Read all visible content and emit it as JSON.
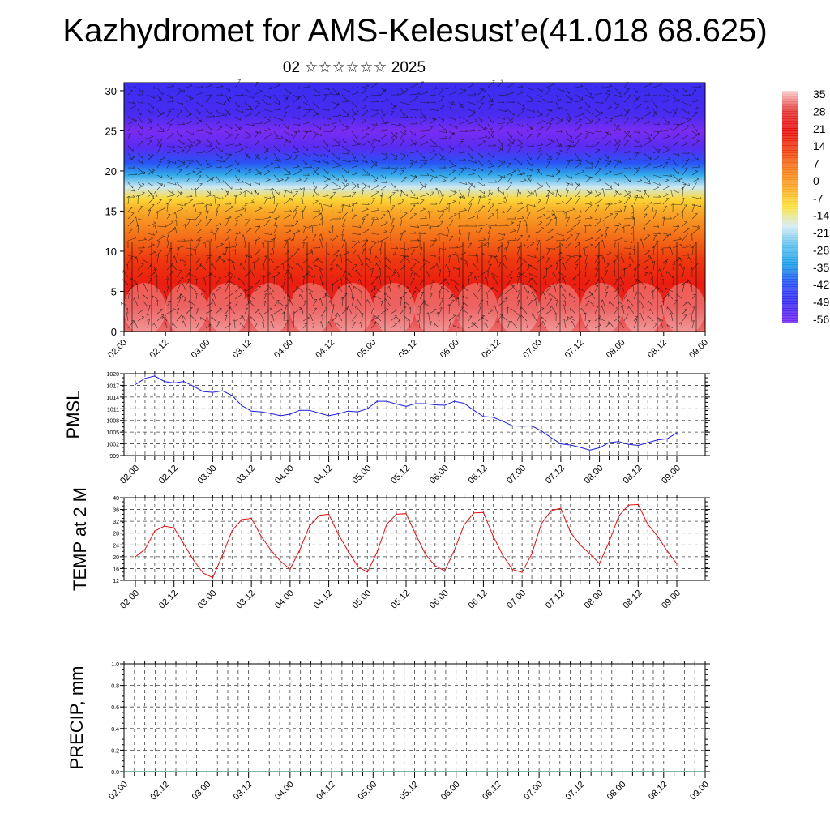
{
  "title": "Kazhydromet for AMS-Kelesust’e(41.018 68.625)",
  "subtitle": "02 ☆☆☆☆☆☆ 2025",
  "colors": {
    "pmsl_line": "#1c1ce0",
    "temp_line": "#e01010",
    "precip_line": "#0a6a4a"
  },
  "chart_data": [
    {
      "type": "heatmap",
      "name": "upper-air cross-section",
      "ylim": [
        0,
        31
      ],
      "yticks": [
        0,
        5,
        10,
        15,
        20,
        25,
        30
      ],
      "x_tick_labels": [
        "02.00",
        "02.12",
        "03.00",
        "03.12",
        "04.00",
        "04.12",
        "05.00",
        "05.12",
        "06.00",
        "06.12",
        "07.00",
        "07.12",
        "08.00",
        "08.12",
        "09.00"
      ],
      "colorbar": {
        "labels": [
          "35",
          "28",
          "21",
          "14",
          "7",
          "0",
          "-7",
          "-14",
          "-21",
          "-28",
          "-35",
          "-42",
          "-49",
          "-56"
        ],
        "stops": [
          "#f9d0d0",
          "#e53a3a",
          "#e81010",
          "#ee3a10",
          "#f5781a",
          "#f8a828",
          "#fce23a",
          "#d8ecf4",
          "#5ec0ec",
          "#1a9ee8",
          "#2b4ef5",
          "#3a2cf0",
          "#7a2cf2"
        ]
      },
      "bands": [
        {
          "level": 0,
          "temp": 30
        },
        {
          "level": 3,
          "temp": 24
        },
        {
          "level": 6,
          "temp": 17
        },
        {
          "level": 9,
          "temp": 12
        },
        {
          "level": 11,
          "temp": 7
        },
        {
          "level": 13,
          "temp": 2
        },
        {
          "level": 15,
          "temp": -4
        },
        {
          "level": 16.5,
          "temp": -10
        },
        {
          "level": 18,
          "temp": -20
        },
        {
          "level": 19.5,
          "temp": -32
        },
        {
          "level": 21,
          "temp": -42
        },
        {
          "level": 23,
          "temp": -54
        },
        {
          "level": 25,
          "temp": -58
        },
        {
          "level": 27,
          "temp": -52
        },
        {
          "level": 31,
          "temp": -50
        }
      ]
    },
    {
      "type": "line",
      "ylabel": "PMSL",
      "ylim": [
        999,
        1020
      ],
      "yticks": [
        "999",
        "1002",
        "1005",
        "1008",
        "1011",
        "1014",
        "1017",
        "1020"
      ],
      "x_tick_labels": [
        "02.00",
        "02.12",
        "03.00",
        "03.12",
        "04.00",
        "04.12",
        "05.00",
        "05.12",
        "06.00",
        "06.12",
        "07.00",
        "07.12",
        "08.00",
        "08.12",
        "09.00"
      ],
      "series": [
        {
          "values": [
            1017.2,
            1018.8,
            1019.4,
            1018.0,
            1017.6,
            1018.0,
            1016.8,
            1015.4,
            1015.2,
            1015.6,
            1014.4,
            1011.8,
            1010.4,
            1010.2,
            1009.8,
            1009.2,
            1009.6,
            1010.6,
            1010.6,
            1009.9,
            1009.2,
            1009.7,
            1010.4,
            1010.2,
            1011.0,
            1012.9,
            1012.9,
            1012.2,
            1011.6,
            1012.3,
            1012.3,
            1012.0,
            1011.9,
            1012.9,
            1012.4,
            1010.6,
            1009.0,
            1008.8,
            1007.8,
            1006.6,
            1006.5,
            1006.6,
            1005.3,
            1003.6,
            1002.0,
            1001.7,
            1001.1,
            1000.4,
            1001.0,
            1002.3,
            1002.6,
            1001.9,
            1001.6,
            1002.3,
            1003.0,
            1003.3,
            1004.8
          ]
        }
      ]
    },
    {
      "type": "line",
      "ylabel": "TEMP at 2 M",
      "ylim": [
        12,
        40
      ],
      "yticks": [
        "12",
        "16",
        "20",
        "24",
        "28",
        "32",
        "36",
        "40"
      ],
      "x_tick_labels": [
        "02.00",
        "02.12",
        "03.00",
        "03.12",
        "04.00",
        "04.12",
        "05.00",
        "05.12",
        "06.00",
        "06.12",
        "07.00",
        "07.12",
        "08.00",
        "08.12",
        "09.00"
      ],
      "series": [
        {
          "values": [
            20.0,
            22.5,
            28.7,
            30.4,
            29.8,
            24.4,
            18.9,
            14.5,
            12.9,
            20.5,
            28.8,
            32.6,
            33.0,
            27.0,
            22.3,
            18.5,
            15.8,
            22.3,
            30.3,
            34.0,
            34.4,
            27.5,
            22.0,
            16.7,
            14.8,
            21.5,
            31.0,
            34.4,
            34.6,
            27.5,
            20.8,
            16.9,
            15.2,
            22.2,
            30.8,
            34.8,
            35.0,
            27.0,
            20.5,
            15.7,
            14.7,
            21.0,
            31.2,
            35.6,
            36.4,
            28.3,
            24.0,
            21.0,
            17.7,
            25.0,
            33.8,
            37.5,
            37.7,
            31.0,
            27.0,
            22.0,
            17.6
          ]
        }
      ]
    },
    {
      "type": "line",
      "ylabel": "PRECIP, mm",
      "ylim": [
        0,
        1
      ],
      "yticks": [
        "0.0",
        "0.2",
        "0.4",
        "0.6",
        "0.8",
        "1.0"
      ],
      "x_tick_labels": [
        "02.00",
        "02.12",
        "03.00",
        "03.12",
        "04.00",
        "04.12",
        "05.00",
        "05.12",
        "06.00",
        "06.12",
        "07.00",
        "07.12",
        "08.00",
        "08.12",
        "09.00"
      ],
      "series": [
        {
          "values": [
            0,
            0,
            0,
            0,
            0,
            0,
            0,
            0,
            0,
            0,
            0,
            0,
            0,
            0,
            0,
            0,
            0,
            0,
            0,
            0,
            0,
            0,
            0,
            0,
            0,
            0,
            0,
            0,
            0,
            0,
            0,
            0,
            0,
            0,
            0,
            0,
            0,
            0,
            0,
            0,
            0,
            0,
            0,
            0,
            0,
            0,
            0,
            0,
            0,
            0,
            0,
            0,
            0,
            0,
            0,
            0,
            0,
            0,
            0,
            0,
            0
          ]
        }
      ]
    }
  ]
}
